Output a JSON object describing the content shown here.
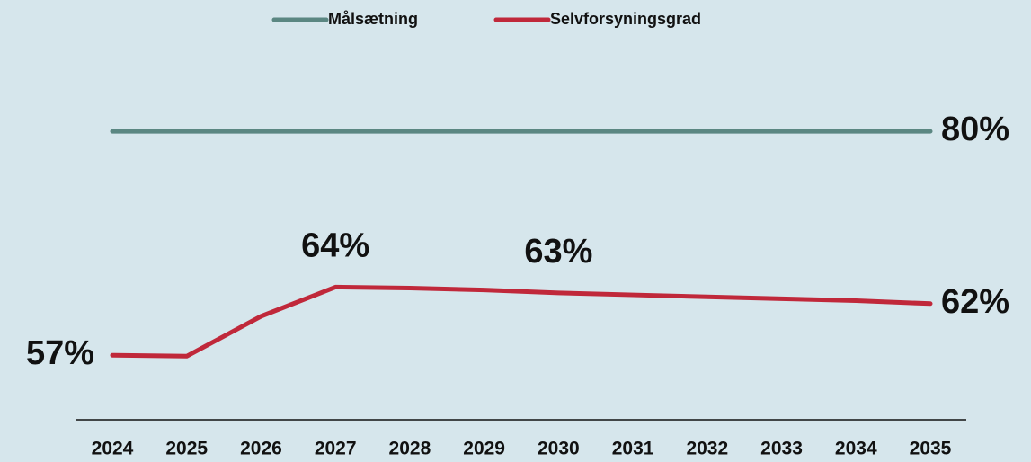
{
  "chart_data": {
    "type": "line",
    "categories": [
      "2024",
      "2025",
      "2026",
      "2027",
      "2028",
      "2029",
      "2030",
      "2031",
      "2032",
      "2033",
      "2034",
      "2035"
    ],
    "series": [
      {
        "name": "Målsætning",
        "color": "#5b8782",
        "values": [
          80,
          80,
          80,
          80,
          80,
          80,
          80,
          80,
          80,
          80,
          80,
          80
        ],
        "value_labels": [
          null,
          null,
          null,
          null,
          null,
          null,
          null,
          null,
          null,
          null,
          null,
          "80%"
        ]
      },
      {
        "name": "Selvforsyningsgrad",
        "color": "#c0283a",
        "values": [
          57,
          56.9,
          61,
          64,
          63.9,
          63.7,
          63.4,
          63.2,
          63.0,
          62.8,
          62.6,
          62.3
        ],
        "value_labels": [
          "57%",
          null,
          null,
          "64%",
          null,
          null,
          "63%",
          null,
          null,
          null,
          null,
          "62%"
        ]
      }
    ],
    "ylim": [
      50,
      85
    ],
    "legend": "top"
  }
}
